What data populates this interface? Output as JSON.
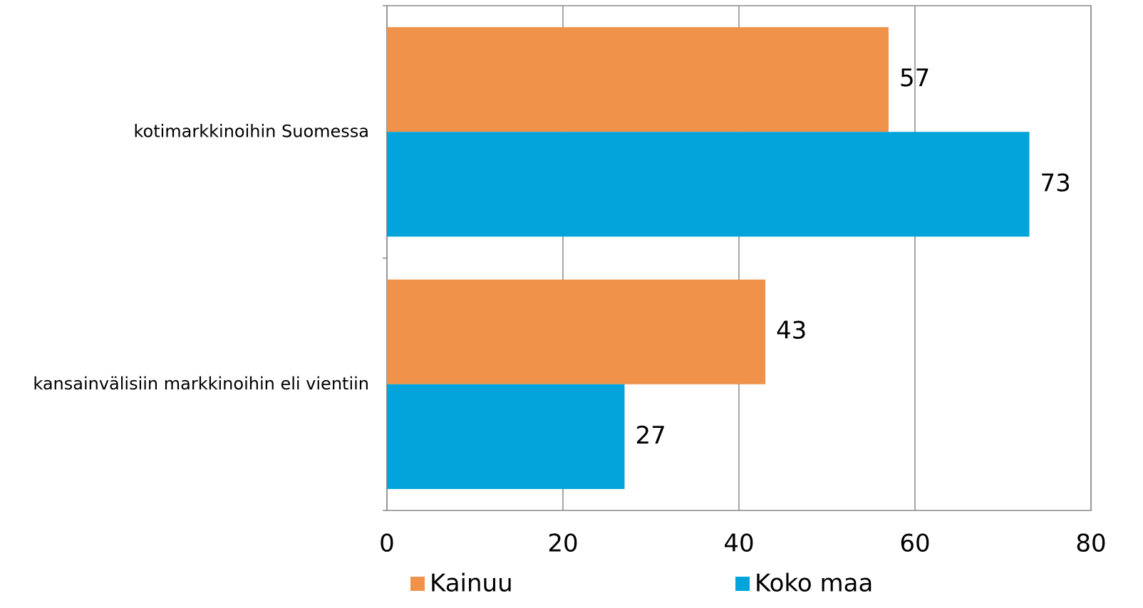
{
  "chart_data": {
    "type": "bar",
    "orientation": "horizontal",
    "categories": [
      "kotimarkkinoihin Suomessa",
      "kansainvälisiin markkinoihin eli vientiin"
    ],
    "series": [
      {
        "name": "Kainuu",
        "color": "#f0924a",
        "values": [
          57,
          43
        ]
      },
      {
        "name": "Koko maa",
        "color": "#02a4db",
        "values": [
          73,
          27
        ]
      }
    ],
    "xlim": [
      0,
      80
    ],
    "xticks": [
      0,
      20,
      40,
      60,
      80
    ],
    "grid": true,
    "legend": "bottom"
  }
}
